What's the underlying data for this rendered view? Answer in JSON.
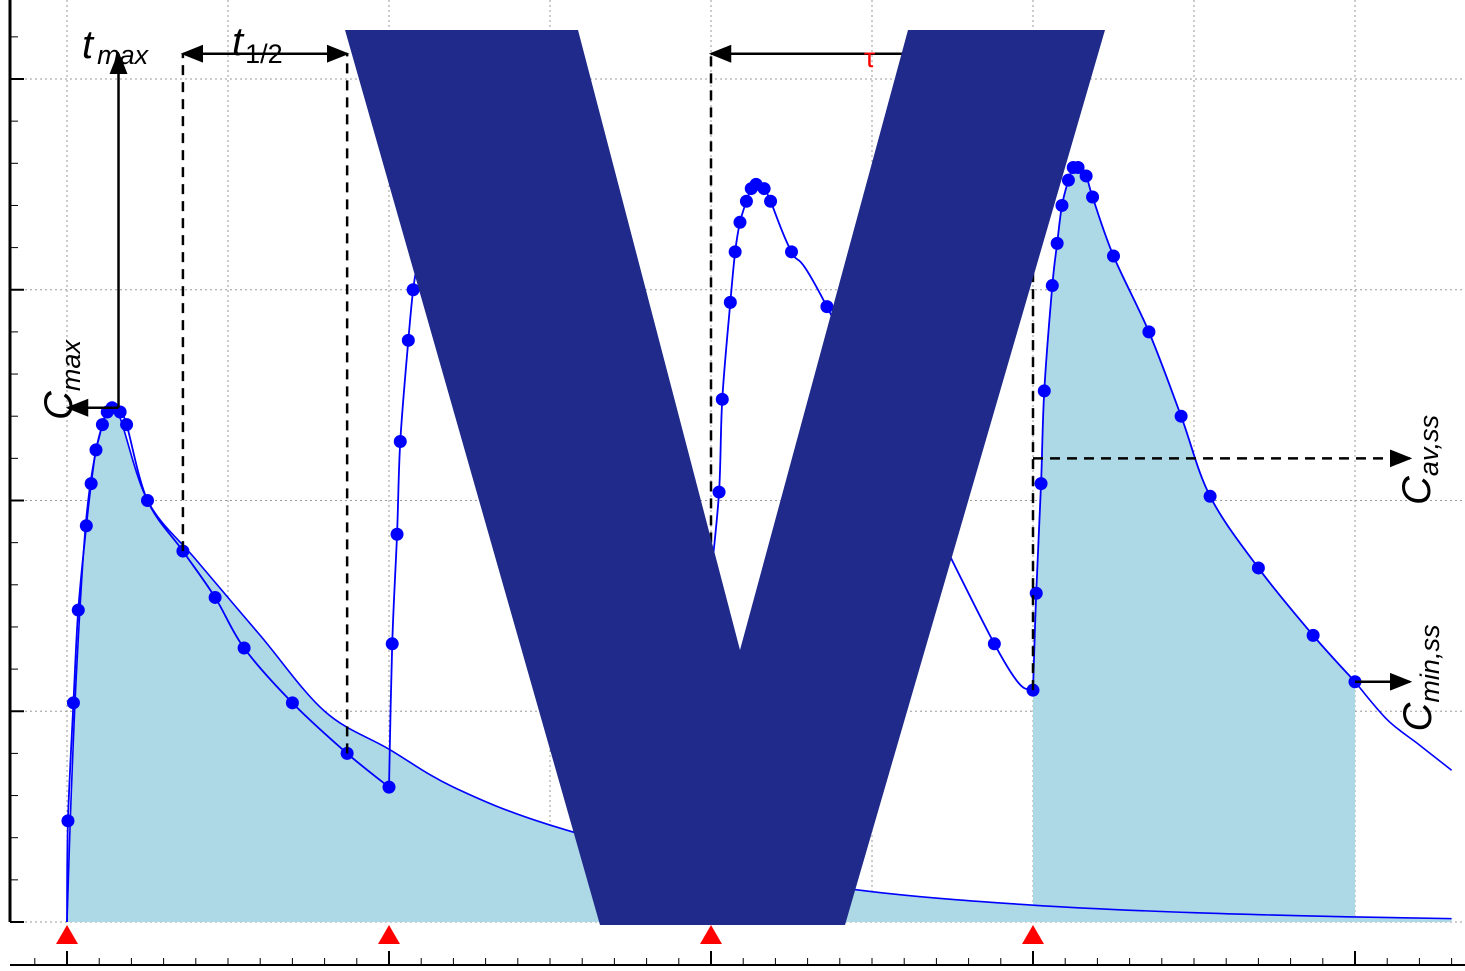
{
  "chart_data": {
    "type": "line",
    "title": "",
    "xlabel": "",
    "ylabel": "",
    "tau": 10,
    "half_life": 5,
    "xlim": [
      -2,
      43
    ],
    "ylim": [
      0,
      10.5
    ],
    "grid": true,
    "legend": "none",
    "dose_times": [
      0,
      10,
      20,
      30
    ],
    "series": [
      {
        "name": "",
        "x": [
          0.03,
          0.2,
          0.35,
          0.6,
          0.75,
          0.9,
          1.1,
          1.25,
          1.4,
          1.65,
          1.85,
          2.5,
          3.6,
          4.6,
          5.5,
          7.0,
          8.7,
          10.0
        ],
        "y": [
          1.2,
          2.6,
          3.7,
          4.7,
          5.2,
          5.6,
          5.9,
          6.05,
          6.1,
          6.05,
          5.9,
          5.0,
          4.4,
          3.85,
          3.25,
          2.6,
          2.0,
          1.6
        ]
      },
      {
        "name": "",
        "x": [
          10.1,
          10.25,
          10.35,
          10.6,
          10.75,
          10.9,
          11.1,
          11.25,
          11.4,
          11.65
        ],
        "y": [
          3.3,
          4.6,
          5.7,
          6.9,
          7.5,
          7.85,
          8.2,
          8.4,
          8.55,
          8.6
        ]
      },
      {
        "name": "",
        "x": [
          20.25,
          20.35,
          20.6,
          20.75,
          20.9,
          21.1,
          21.25,
          21.4,
          21.65,
          21.85,
          22.5,
          23.6,
          28.8,
          30.0
        ],
        "y": [
          5.1,
          6.2,
          7.35,
          7.95,
          8.3,
          8.55,
          8.7,
          8.75,
          8.7,
          8.55,
          7.95,
          7.3,
          3.3,
          2.75
        ]
      },
      {
        "name": "",
        "x": [
          30.1,
          30.25,
          30.35,
          30.6,
          30.75,
          30.9,
          31.1,
          31.25,
          31.4,
          31.65,
          31.85,
          32.5,
          33.6,
          34.6,
          35.5,
          37.0,
          38.7,
          40.0
        ],
        "y": [
          3.9,
          5.2,
          6.3,
          7.55,
          8.05,
          8.5,
          8.8,
          8.95,
          8.95,
          8.85,
          8.6,
          7.9,
          7.0,
          6.0,
          5.05,
          4.2,
          3.4,
          2.85
        ]
      }
    ],
    "single_dose_curve": {
      "x": [
        0,
        0.1,
        0.3,
        0.6,
        1.0,
        1.5,
        2.5,
        4,
        6,
        8,
        10,
        12,
        15,
        20,
        25,
        30,
        35,
        40,
        43
      ],
      "y": [
        0,
        1.2,
        3.0,
        4.8,
        5.75,
        6.1,
        5.0,
        4.3,
        3.4,
        2.5,
        2.05,
        1.6,
        1.15,
        0.65,
        0.36,
        0.2,
        0.11,
        0.06,
        0.04
      ]
    },
    "steady_state_tail": {
      "x": [
        40,
        41,
        42,
        43
      ],
      "y": [
        2.85,
        2.4,
        2.1,
        1.8
      ]
    },
    "annotations": {
      "t_max": {
        "base": "t",
        "sub": "max"
      },
      "t_half": {
        "base": "t",
        "sub": "1/2"
      },
      "c_max": {
        "base": "C",
        "sub": "max"
      },
      "tau": "τ",
      "c_av_ss": {
        "base": "C",
        "sub": "av,ss"
      },
      "c_min_ss": {
        "base": "C",
        "sub": "min,ss"
      }
    },
    "markers": {
      "t_max_x": 1.6,
      "c_max_y": 6.1,
      "t_half_start_x": 3.6,
      "t_half_end_x": 8.7,
      "c_av_ss_y": 5.5,
      "c_min_ss_y": 2.85,
      "top_arrow_y": 10.3
    },
    "colors": {
      "curve": "#0000ff",
      "marker": "#0000ff",
      "fill": "#add8e6",
      "dose_marker": "#ff0000",
      "tau_label": "#ff0000",
      "overlay": "#1f2a8a",
      "grid": "#9a9a9a"
    },
    "overlay_letter": "V"
  }
}
